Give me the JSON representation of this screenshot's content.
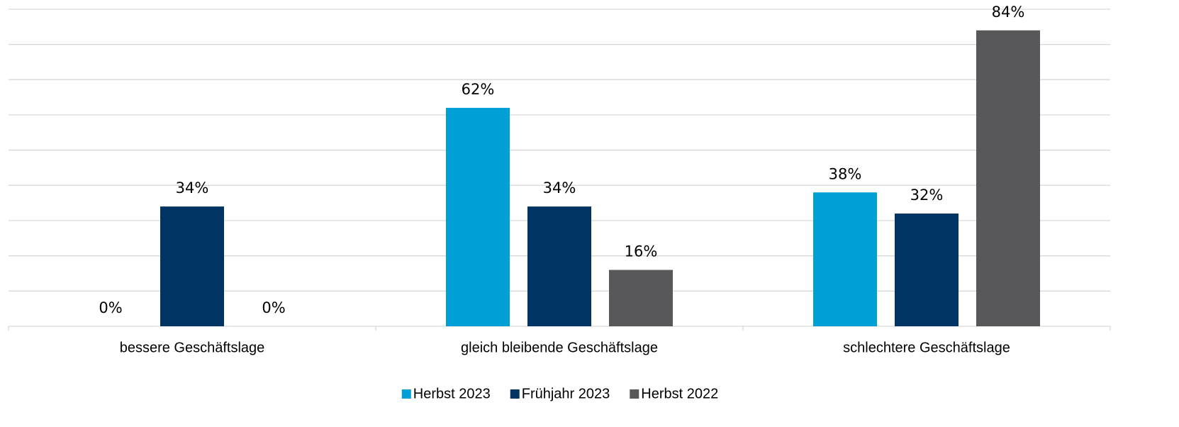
{
  "chart_data": {
    "type": "bar",
    "categories": [
      "bessere Geschäftslage",
      "gleich bleibende Geschäftslage",
      "schlechtere Geschäftslage"
    ],
    "series": [
      {
        "name": "Herbst 2023",
        "color": "#009fd6",
        "values": [
          0,
          62,
          38
        ],
        "value_labels": [
          "0%",
          "62%",
          "38%"
        ]
      },
      {
        "name": "Frühjahr 2023",
        "color": "#003462",
        "values": [
          34,
          34,
          32
        ],
        "value_labels": [
          "34%",
          "34%",
          "32%"
        ]
      },
      {
        "name": "Herbst 2022",
        "color": "#58585a",
        "values": [
          0,
          16,
          84
        ],
        "value_labels": [
          "0%",
          "16%",
          "84%"
        ]
      }
    ],
    "ylim": [
      0,
      90
    ],
    "yticks": [
      0,
      10,
      20,
      30,
      40,
      50,
      60,
      70,
      80,
      90
    ],
    "grid": true,
    "legend": "bottom"
  }
}
